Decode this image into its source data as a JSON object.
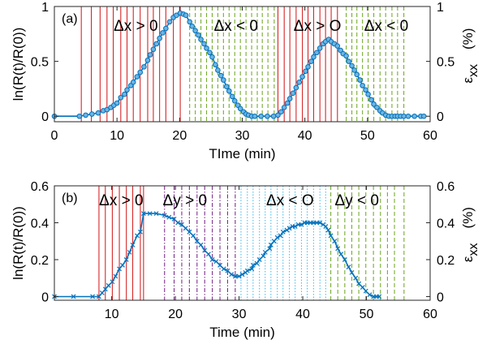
{
  "chart_data": [
    {
      "type": "line",
      "panel_label": "(a)",
      "xlabel": "TIme (min)",
      "ylabel": "ln(R(t)/R(0))",
      "y2label": "ε",
      "y2label_sub": "xx",
      "y2label_unit": "(%)",
      "xlim": [
        0,
        60
      ],
      "ylim": [
        -0.05,
        1
      ],
      "xticks": [
        "0",
        "10",
        "20",
        "30",
        "40",
        "50",
        "60"
      ],
      "yticks": [
        "0",
        "0.5",
        "1"
      ],
      "y2ticks": [
        "0",
        "0.5",
        "1"
      ],
      "marker": "o",
      "line_color": "#0072BD",
      "annotations": [
        {
          "text": "Δx > 0",
          "x": 13
        },
        {
          "text": "Δx < 0",
          "x": 29
        },
        {
          "text": "Δx > O",
          "x": 42
        },
        {
          "text": "Δx < 0",
          "x": 53
        }
      ],
      "vlines": [
        {
          "style": "solid",
          "color": "#D62728",
          "x": [
            4.3,
            5.9,
            7.3,
            8.4,
            9.4,
            10.6,
            11.6,
            12.6,
            13.7,
            14.9,
            15.8,
            16.8,
            17.8,
            19.0,
            20.1
          ]
        },
        {
          "style": "dashed",
          "color": "#77AC30",
          "x": [
            21.6,
            22.5,
            23.4,
            24.3,
            25.2,
            26.1,
            27.0,
            27.9,
            28.8,
            29.7,
            30.6,
            31.5,
            32.4,
            33.2,
            34.1,
            35.1
          ]
        },
        {
          "style": "solid",
          "color": "#D62728",
          "x": [
            35.7,
            36.7,
            37.6,
            38.6,
            39.6,
            40.5,
            41.4,
            42.4,
            43.3,
            44.2,
            45.2
          ]
        },
        {
          "style": "dashed",
          "color": "#77AC30",
          "x": [
            46.6,
            47.5,
            48.3,
            49.2,
            50.1,
            51.0,
            52.0,
            52.9,
            53.9,
            54.8,
            55.8
          ]
        }
      ],
      "series": [
        {
          "x": [
            0,
            4,
            5,
            6,
            7,
            7.8,
            8.4,
            9.0,
            9.5,
            10.0,
            10.6,
            11.2,
            11.6,
            12.2,
            12.6,
            13.2,
            13.7,
            14.3,
            14.9,
            15.3,
            15.8,
            16.3,
            16.8,
            17.3,
            17.8,
            18.4,
            19.0,
            19.5,
            20.1,
            20.6,
            21.0,
            21.6,
            22.0,
            22.5,
            23.0,
            23.4,
            23.9,
            24.3,
            24.8,
            25.2,
            25.7,
            26.1,
            26.6,
            27.0,
            27.5,
            27.9,
            28.4,
            28.8,
            29.3,
            29.7,
            30.2,
            30.6,
            31.0,
            31.5,
            32.0,
            33.0,
            34.0,
            35.0,
            35.7,
            36.2,
            36.7,
            37.2,
            37.6,
            38.1,
            38.6,
            39.1,
            39.6,
            40.1,
            40.5,
            41.0,
            41.4,
            41.9,
            42.4,
            42.9,
            43.3,
            43.8,
            44.2,
            44.7,
            45.2,
            45.7,
            46.1,
            46.6,
            47.0,
            47.5,
            47.9,
            48.3,
            48.8,
            49.2,
            49.7,
            50.1,
            50.6,
            51.0,
            51.5,
            52.0,
            52.4,
            52.9,
            53.4,
            53.9,
            54.4,
            54.8,
            55.3,
            55.8,
            56.5,
            57.5,
            58.5,
            59.0
          ],
          "y": [
            0.0,
            0.0,
            0.01,
            0.02,
            0.03,
            0.05,
            0.06,
            0.08,
            0.1,
            0.12,
            0.17,
            0.2,
            0.24,
            0.28,
            0.31,
            0.36,
            0.4,
            0.45,
            0.51,
            0.56,
            0.61,
            0.66,
            0.71,
            0.76,
            0.8,
            0.86,
            0.9,
            0.92,
            0.94,
            0.93,
            0.92,
            0.86,
            0.82,
            0.78,
            0.74,
            0.7,
            0.66,
            0.62,
            0.58,
            0.54,
            0.47,
            0.42,
            0.37,
            0.33,
            0.27,
            0.23,
            0.18,
            0.14,
            0.1,
            0.07,
            0.04,
            0.02,
            0.01,
            0.0,
            0.0,
            0.0,
            0.0,
            0.0,
            0.01,
            0.04,
            0.08,
            0.12,
            0.16,
            0.21,
            0.26,
            0.31,
            0.36,
            0.41,
            0.45,
            0.5,
            0.54,
            0.58,
            0.62,
            0.66,
            0.68,
            0.7,
            0.68,
            0.66,
            0.64,
            0.6,
            0.57,
            0.55,
            0.5,
            0.46,
            0.42,
            0.38,
            0.33,
            0.28,
            0.24,
            0.2,
            0.15,
            0.11,
            0.08,
            0.05,
            0.03,
            0.01,
            0.0,
            0.0,
            0.0,
            0.0,
            0.0,
            0.0,
            0.0,
            0.0,
            0.0,
            0.0
          ]
        }
      ]
    },
    {
      "type": "line",
      "panel_label": "(b)",
      "xlabel": "Time (min)",
      "ylabel": "ln(R(t)/R(0))",
      "y2label": "ε",
      "y2label_sub": "xx",
      "y2label_unit": "(%)",
      "xlim": [
        1,
        60
      ],
      "ylim": [
        -0.02,
        0.6
      ],
      "xticks": [
        "10",
        "20",
        "30",
        "40",
        "50",
        "60"
      ],
      "yticks": [
        "0",
        "0.2",
        "0.4",
        "0.6"
      ],
      "y2ticks": [
        "0",
        "0.2",
        "0.4",
        "0.6"
      ],
      "marker": "x",
      "line_color": "#0072BD",
      "annotations": [
        {
          "text": "Δx > 0",
          "x": 11.5
        },
        {
          "text": "Δy > 0",
          "x": 21.5
        },
        {
          "text": "Δx < O",
          "x": 38
        },
        {
          "text": "Δy < 0",
          "x": 48.5
        }
      ],
      "vlines": [
        {
          "style": "solid",
          "color": "#D62728",
          "x": [
            8.0,
            9.0,
            10.1,
            11.2,
            12.3,
            13.3,
            14.5,
            15.0
          ]
        },
        {
          "style": "dashdot",
          "color": "#7E2F8E",
          "x": [
            18.3,
            19.8,
            21.0,
            22.2,
            23.4,
            24.6,
            25.8,
            27.0,
            28.2,
            29.4
          ]
        },
        {
          "style": "dotted",
          "color": "#4DBEEE",
          "x": [
            30.3,
            31.3,
            32.2,
            33.2,
            34.1,
            35.0,
            36.0,
            36.9,
            37.9,
            38.8,
            39.8,
            40.7,
            41.7,
            42.7,
            43.6
          ]
        },
        {
          "style": "dashed",
          "color": "#77AC30",
          "x": [
            44.4,
            45.5,
            46.6,
            47.7,
            48.8,
            49.9,
            51.1,
            52.2,
            53.3,
            54.4,
            55.9
          ]
        }
      ],
      "series": [
        {
          "x": [
            1,
            4,
            7,
            8.0,
            8.5,
            9.0,
            9.5,
            10.1,
            10.6,
            11.2,
            11.7,
            12.3,
            12.8,
            13.3,
            14.0,
            14.5,
            15.0,
            16.0,
            17.0,
            18.3,
            19.0,
            19.8,
            20.4,
            21.0,
            21.6,
            22.2,
            22.8,
            23.4,
            24.0,
            24.6,
            25.2,
            25.8,
            26.4,
            27.0,
            27.6,
            28.2,
            28.8,
            29.4,
            30.0,
            30.5,
            31.0,
            31.3,
            32.0,
            32.2,
            32.8,
            33.2,
            33.8,
            34.1,
            34.8,
            35.0,
            35.5,
            36.0,
            36.5,
            36.9,
            37.5,
            37.9,
            38.4,
            38.8,
            39.3,
            39.8,
            40.3,
            40.7,
            41.2,
            41.7,
            42.2,
            42.7,
            43.2,
            43.6,
            44.0,
            44.4,
            45.0,
            45.5,
            46.0,
            46.6,
            47.2,
            47.7,
            48.3,
            48.8,
            49.4,
            49.9,
            50.5,
            51.1,
            51.6,
            52.0
          ],
          "y": [
            0.0,
            0.0,
            0.0,
            0.0,
            0.02,
            0.04,
            0.06,
            0.08,
            0.11,
            0.15,
            0.17,
            0.2,
            0.24,
            0.28,
            0.33,
            0.35,
            0.45,
            0.45,
            0.45,
            0.44,
            0.43,
            0.42,
            0.4,
            0.39,
            0.37,
            0.35,
            0.33,
            0.3,
            0.28,
            0.25,
            0.23,
            0.2,
            0.19,
            0.17,
            0.15,
            0.14,
            0.12,
            0.11,
            0.11,
            0.12,
            0.13,
            0.14,
            0.15,
            0.17,
            0.18,
            0.2,
            0.22,
            0.24,
            0.26,
            0.28,
            0.3,
            0.32,
            0.33,
            0.35,
            0.36,
            0.37,
            0.38,
            0.38,
            0.39,
            0.39,
            0.4,
            0.4,
            0.4,
            0.4,
            0.4,
            0.4,
            0.39,
            0.38,
            0.36,
            0.33,
            0.3,
            0.26,
            0.23,
            0.2,
            0.16,
            0.13,
            0.1,
            0.07,
            0.05,
            0.03,
            0.01,
            0.0,
            0.0,
            0.0
          ]
        }
      ]
    }
  ]
}
